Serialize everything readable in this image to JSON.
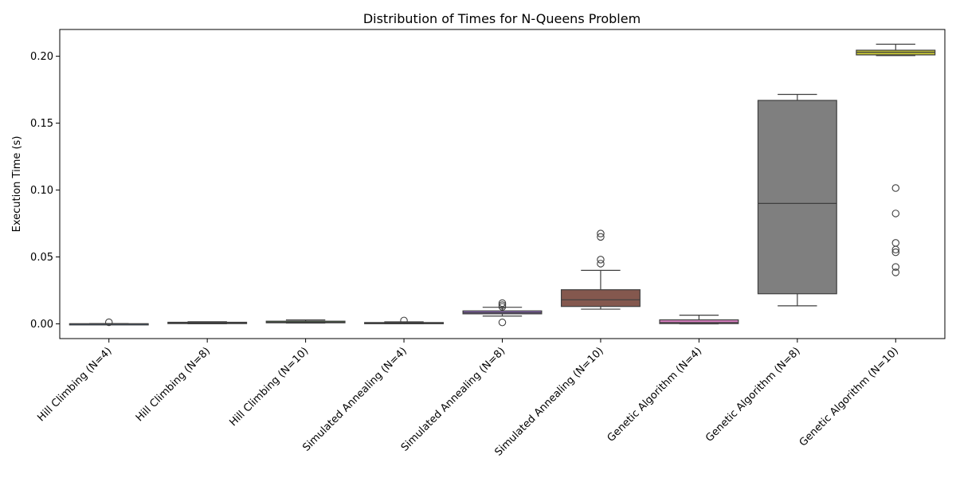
{
  "chart_data": {
    "type": "box",
    "title": "Distribution of Times for N-Queens Problem",
    "xlabel": "",
    "ylabel": "Execution Time (s)",
    "ylim": [
      -0.011,
      0.22
    ],
    "yticks": [
      0.0,
      0.05,
      0.1,
      0.15,
      0.2
    ],
    "ytick_labels": [
      "0.00",
      "0.05",
      "0.10",
      "0.15",
      "0.20"
    ],
    "grid": false,
    "categories": [
      "Hill Climbing (N=4)",
      "Hill Climbing (N=8)",
      "Hill Climbing (N=10)",
      "Simulated Annealing (N=4)",
      "Simulated Annealing (N=8)",
      "Simulated Annealing (N=10)",
      "Genetic Algorithm (N=4)",
      "Genetic Algorithm (N=8)",
      "Genetic Algorithm (N=10)"
    ],
    "colors": [
      "#3b75af",
      "#ef8636",
      "#519e3e",
      "#c53a32",
      "#8d69b8",
      "#84584e",
      "#d57dbe",
      "#7f7f7f",
      "#bcbc35"
    ],
    "boxes": [
      {
        "whislo": 0.0,
        "q1": 0.0,
        "med": 0.0,
        "q3": 0.0001,
        "whishi": 0.0002,
        "fliers": [
          0.0012
        ]
      },
      {
        "whislo": 0.0001,
        "q1": 0.0002,
        "med": 0.0006,
        "q3": 0.0012,
        "whishi": 0.0016,
        "fliers": []
      },
      {
        "whislo": 0.0006,
        "q1": 0.0008,
        "med": 0.0012,
        "q3": 0.002,
        "whishi": 0.0029,
        "fliers": []
      },
      {
        "whislo": 0.0001,
        "q1": 0.0002,
        "med": 0.0006,
        "q3": 0.001,
        "whishi": 0.0015,
        "fliers": [
          0.0025
        ]
      },
      {
        "whislo": 0.0058,
        "q1": 0.0075,
        "med": 0.0083,
        "q3": 0.0097,
        "whishi": 0.0124,
        "fliers": [
          0.0155,
          0.014,
          0.0127,
          0.0011
        ]
      },
      {
        "whislo": 0.011,
        "q1": 0.013,
        "med": 0.018,
        "q3": 0.0255,
        "whishi": 0.04,
        "fliers": [
          0.0675,
          0.065,
          0.048,
          0.045
        ]
      },
      {
        "whislo": 0.0,
        "q1": 0.0002,
        "med": 0.001,
        "q3": 0.003,
        "whishi": 0.0065,
        "fliers": []
      },
      {
        "whislo": 0.0135,
        "q1": 0.0225,
        "med": 0.09,
        "q3": 0.167,
        "whishi": 0.1715,
        "fliers": []
      },
      {
        "whislo": 0.2005,
        "q1": 0.201,
        "med": 0.203,
        "q3": 0.2045,
        "whishi": 0.209,
        "fliers": [
          0.1015,
          0.0825,
          0.0605,
          0.0555,
          0.0535,
          0.0425,
          0.0385
        ]
      }
    ]
  }
}
